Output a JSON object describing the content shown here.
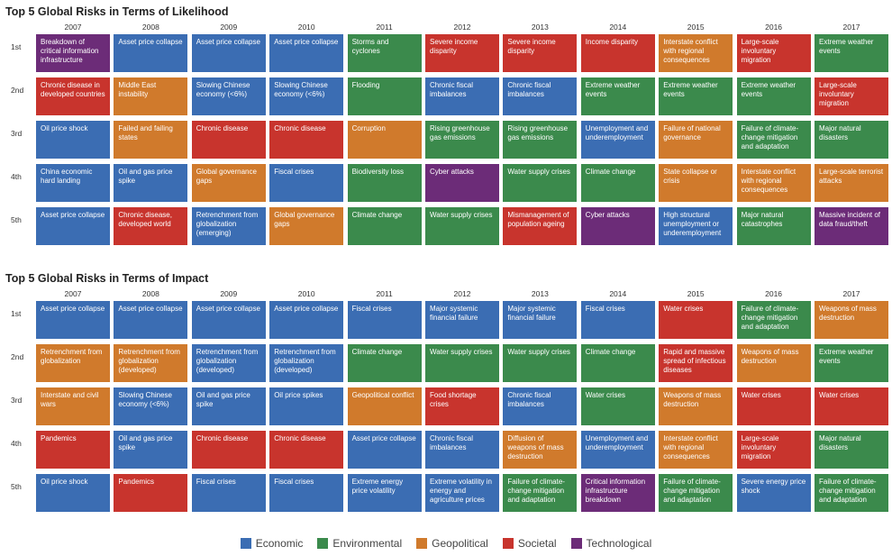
{
  "colors": {
    "Economic": "#3b6db3",
    "Environmental": "#3b8a4c",
    "Geopolitical": "#d07a2c",
    "Societal": "#c8342d",
    "Technological": "#6c2c78"
  },
  "chart_data": [
    {
      "type": "table",
      "title": "Top 5 Global Risks in Terms of Likelihood",
      "years": [
        "2007",
        "2008",
        "2009",
        "2010",
        "2011",
        "2012",
        "2013",
        "2014",
        "2015",
        "2016",
        "2017"
      ],
      "ranks": [
        "1st",
        "2nd",
        "3rd",
        "4th",
        "5th"
      ],
      "columns": [
        [
          [
            "Breakdown of critical information infrastructure",
            "Technological"
          ],
          [
            "Chronic disease in developed countries",
            "Societal"
          ],
          [
            "Oil price shock",
            "Economic"
          ],
          [
            "China economic hard landing",
            "Economic"
          ],
          [
            "Asset price collapse",
            "Economic"
          ]
        ],
        [
          [
            "Asset price collapse",
            "Economic"
          ],
          [
            "Middle East instability",
            "Geopolitical"
          ],
          [
            "Failed and failing states",
            "Geopolitical"
          ],
          [
            "Oil and gas price spike",
            "Economic"
          ],
          [
            "Chronic disease, developed world",
            "Societal"
          ]
        ],
        [
          [
            "Asset price collapse",
            "Economic"
          ],
          [
            "Slowing Chinese economy (<6%)",
            "Economic"
          ],
          [
            "Chronic disease",
            "Societal"
          ],
          [
            "Global governance gaps",
            "Geopolitical"
          ],
          [
            "Retrenchment from globalization (emerging)",
            "Economic"
          ]
        ],
        [
          [
            "Asset price collapse",
            "Economic"
          ],
          [
            "Slowing Chinese economy (<6%)",
            "Economic"
          ],
          [
            "Chronic disease",
            "Societal"
          ],
          [
            "Fiscal crises",
            "Economic"
          ],
          [
            "Global governance gaps",
            "Geopolitical"
          ]
        ],
        [
          [
            "Storms and cyclones",
            "Environmental"
          ],
          [
            "Flooding",
            "Environmental"
          ],
          [
            "Corruption",
            "Geopolitical"
          ],
          [
            "Biodiversity loss",
            "Environmental"
          ],
          [
            "Climate change",
            "Environmental"
          ]
        ],
        [
          [
            "Severe income disparity",
            "Societal"
          ],
          [
            "Chronic fiscal imbalances",
            "Economic"
          ],
          [
            "Rising greenhouse gas emissions",
            "Environmental"
          ],
          [
            "Cyber attacks",
            "Technological"
          ],
          [
            "Water supply crises",
            "Environmental"
          ]
        ],
        [
          [
            "Severe income disparity",
            "Societal"
          ],
          [
            "Chronic fiscal imbalances",
            "Economic"
          ],
          [
            "Rising greenhouse gas emissions",
            "Environmental"
          ],
          [
            "Water supply crises",
            "Environmental"
          ],
          [
            "Mismanagement of population ageing",
            "Societal"
          ]
        ],
        [
          [
            "Income disparity",
            "Societal"
          ],
          [
            "Extreme weather events",
            "Environmental"
          ],
          [
            "Unemployment and underemployment",
            "Economic"
          ],
          [
            "Climate change",
            "Environmental"
          ],
          [
            "Cyber attacks",
            "Technological"
          ]
        ],
        [
          [
            "Interstate conflict with regional consequences",
            "Geopolitical"
          ],
          [
            "Extreme weather events",
            "Environmental"
          ],
          [
            "Failure of national governance",
            "Geopolitical"
          ],
          [
            "State collapse or crisis",
            "Geopolitical"
          ],
          [
            "High structural unemployment or underemployment",
            "Economic"
          ]
        ],
        [
          [
            "Large-scale involuntary migration",
            "Societal"
          ],
          [
            "Extreme weather events",
            "Environmental"
          ],
          [
            "Failure of climate-change mitigation and adaptation",
            "Environmental"
          ],
          [
            "Interstate conflict with regional consequences",
            "Geopolitical"
          ],
          [
            "Major natural catastrophes",
            "Environmental"
          ]
        ],
        [
          [
            "Extreme weather events",
            "Environmental"
          ],
          [
            "Large-scale involuntary migration",
            "Societal"
          ],
          [
            "Major natural disasters",
            "Environmental"
          ],
          [
            "Large-scale terrorist attacks",
            "Geopolitical"
          ],
          [
            "Massive incident of data fraud/theft",
            "Technological"
          ]
        ]
      ]
    },
    {
      "type": "table",
      "title": "Top 5 Global Risks in Terms of Impact",
      "years": [
        "2007",
        "2008",
        "2009",
        "2010",
        "2011",
        "2012",
        "2013",
        "2014",
        "2015",
        "2016",
        "2017"
      ],
      "ranks": [
        "1st",
        "2nd",
        "3rd",
        "4th",
        "5th"
      ],
      "columns": [
        [
          [
            "Asset price collapse",
            "Economic"
          ],
          [
            "Retrenchment from globalization",
            "Geopolitical"
          ],
          [
            "Interstate and civil wars",
            "Geopolitical"
          ],
          [
            "Pandemics",
            "Societal"
          ],
          [
            "Oil price shock",
            "Economic"
          ]
        ],
        [
          [
            "Asset price collapse",
            "Economic"
          ],
          [
            "Retrenchment from globalization (developed)",
            "Geopolitical"
          ],
          [
            "Slowing Chinese economy (<6%)",
            "Economic"
          ],
          [
            "Oil and gas price spike",
            "Economic"
          ],
          [
            "Pandemics",
            "Societal"
          ]
        ],
        [
          [
            "Asset price collapse",
            "Economic"
          ],
          [
            "Retrenchment from globalization (developed)",
            "Economic"
          ],
          [
            "Oil and gas price spike",
            "Economic"
          ],
          [
            "Chronic disease",
            "Societal"
          ],
          [
            "Fiscal crises",
            "Economic"
          ]
        ],
        [
          [
            "Asset price collapse",
            "Economic"
          ],
          [
            "Retrenchment from globalization (developed)",
            "Economic"
          ],
          [
            "Oil price spikes",
            "Economic"
          ],
          [
            "Chronic disease",
            "Societal"
          ],
          [
            "Fiscal crises",
            "Economic"
          ]
        ],
        [
          [
            "Fiscal crises",
            "Economic"
          ],
          [
            "Climate change",
            "Environmental"
          ],
          [
            "Geopolitical conflict",
            "Geopolitical"
          ],
          [
            "Asset price collapse",
            "Economic"
          ],
          [
            "Extreme energy price volatility",
            "Economic"
          ]
        ],
        [
          [
            "Major systemic financial failure",
            "Economic"
          ],
          [
            "Water supply crises",
            "Environmental"
          ],
          [
            "Food shortage crises",
            "Societal"
          ],
          [
            "Chronic fiscal imbalances",
            "Economic"
          ],
          [
            "Extreme volatility in energy and agriculture prices",
            "Economic"
          ]
        ],
        [
          [
            "Major systemic financial failure",
            "Economic"
          ],
          [
            "Water supply crises",
            "Environmental"
          ],
          [
            "Chronic fiscal imbalances",
            "Economic"
          ],
          [
            "Diffusion of weapons of mass destruction",
            "Geopolitical"
          ],
          [
            "Failure of climate-change mitigation and adaptation",
            "Environmental"
          ]
        ],
        [
          [
            "Fiscal crises",
            "Economic"
          ],
          [
            "Climate change",
            "Environmental"
          ],
          [
            "Water crises",
            "Environmental"
          ],
          [
            "Unemployment and underemployment",
            "Economic"
          ],
          [
            "Critical information infrastructure breakdown",
            "Technological"
          ]
        ],
        [
          [
            "Water crises",
            "Societal"
          ],
          [
            "Rapid and massive spread of infectious diseases",
            "Societal"
          ],
          [
            "Weapons of mass destruction",
            "Geopolitical"
          ],
          [
            "Interstate conflict with regional consequences",
            "Geopolitical"
          ],
          [
            "Failure of climate-change mitigation and adaptation",
            "Environmental"
          ]
        ],
        [
          [
            "Failure of climate-change mitigation and adaptation",
            "Environmental"
          ],
          [
            "Weapons of mass destruction",
            "Geopolitical"
          ],
          [
            "Water crises",
            "Societal"
          ],
          [
            "Large-scale involuntary migration",
            "Societal"
          ],
          [
            "Severe energy price shock",
            "Economic"
          ]
        ],
        [
          [
            "Weapons of mass destruction",
            "Geopolitical"
          ],
          [
            "Extreme weather events",
            "Environmental"
          ],
          [
            "Water crises",
            "Societal"
          ],
          [
            "Major natural disasters",
            "Environmental"
          ],
          [
            "Failure of climate-change mitigation and adaptation",
            "Environmental"
          ]
        ]
      ]
    }
  ],
  "legend": [
    "Economic",
    "Environmental",
    "Geopolitical",
    "Societal",
    "Technological"
  ]
}
